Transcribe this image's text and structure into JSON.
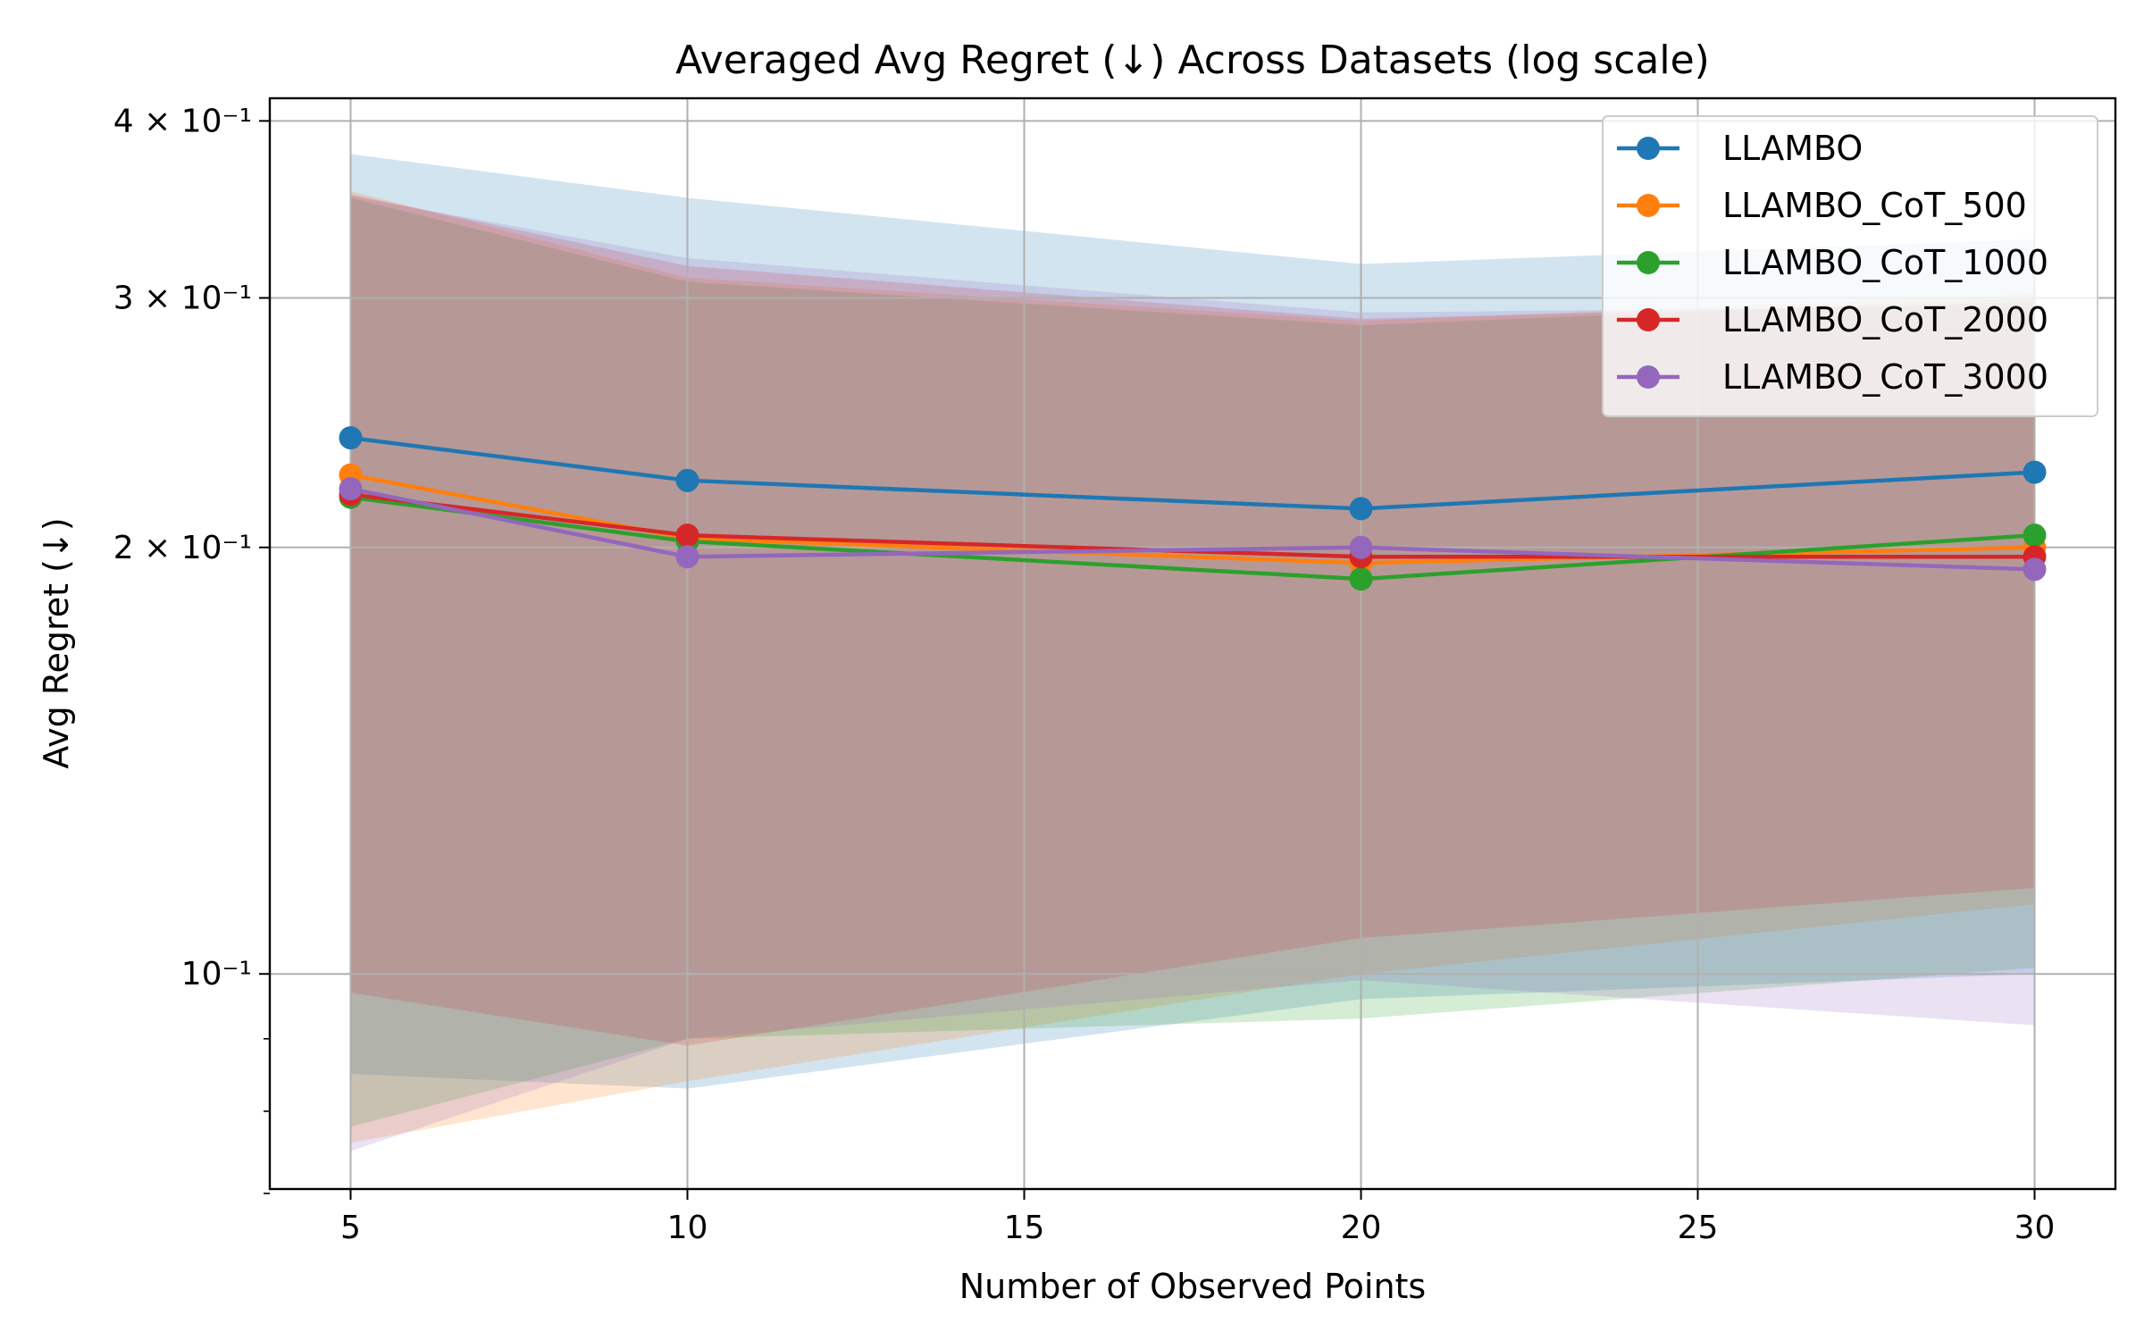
{
  "chart_data": {
    "type": "line",
    "title": "Averaged Avg Regret (↓) Across Datasets (log scale)",
    "xlabel": "Number of Observed Points",
    "ylabel": "Avg Regret (↓)",
    "yscale": "log",
    "xlim": [
      3.8,
      31.2
    ],
    "ylim": [
      0.0705,
      0.415
    ],
    "grid": true,
    "legend_position": "top-right",
    "x_ticks": [
      5,
      10,
      15,
      20,
      25,
      30
    ],
    "y_major_ticks": [
      {
        "value": 0.1,
        "label": "10⁻¹"
      },
      {
        "value": 0.2,
        "label": "2 × 10⁻¹"
      },
      {
        "value": 0.3,
        "label": "3 × 10⁻¹"
      },
      {
        "value": 0.4,
        "label": "4 × 10⁻¹"
      }
    ],
    "y_minor_ticks": [
      0.07,
      0.08,
      0.09
    ],
    "x": [
      5,
      10,
      20,
      30
    ],
    "series": [
      {
        "name": "LLAMBO",
        "color": "#1f77b4",
        "values": [
          0.239,
          0.223,
          0.213,
          0.226
        ],
        "band_upper": [
          0.379,
          0.353,
          0.317,
          0.33
        ],
        "band_lower": [
          0.085,
          0.083,
          0.096,
          0.1
        ]
      },
      {
        "name": "LLAMBO_CoT_500",
        "color": "#ff7f0e",
        "values": [
          0.225,
          0.203,
          0.195,
          0.2
        ],
        "band_upper": [
          0.357,
          0.31,
          0.289,
          0.302
        ],
        "band_lower": [
          0.076,
          0.084,
          0.1,
          0.112
        ]
      },
      {
        "name": "LLAMBO_CoT_1000",
        "color": "#2ca02c",
        "values": [
          0.217,
          0.202,
          0.19,
          0.204
        ],
        "band_upper": [
          0.353,
          0.308,
          0.287,
          0.3
        ],
        "band_lower": [
          0.078,
          0.09,
          0.093,
          0.101
        ]
      },
      {
        "name": "LLAMBO_CoT_2000",
        "color": "#d62728",
        "values": [
          0.218,
          0.204,
          0.197,
          0.197
        ],
        "band_upper": [
          0.355,
          0.316,
          0.29,
          0.298
        ],
        "band_lower": [
          0.097,
          0.089,
          0.106,
          0.115
        ]
      },
      {
        "name": "LLAMBO_CoT_3000",
        "color": "#9467bd",
        "values": [
          0.22,
          0.197,
          0.2,
          0.193
        ],
        "band_upper": [
          0.354,
          0.32,
          0.293,
          0.296
        ],
        "band_lower": [
          0.075,
          0.09,
          0.099,
          0.092
        ]
      }
    ]
  }
}
